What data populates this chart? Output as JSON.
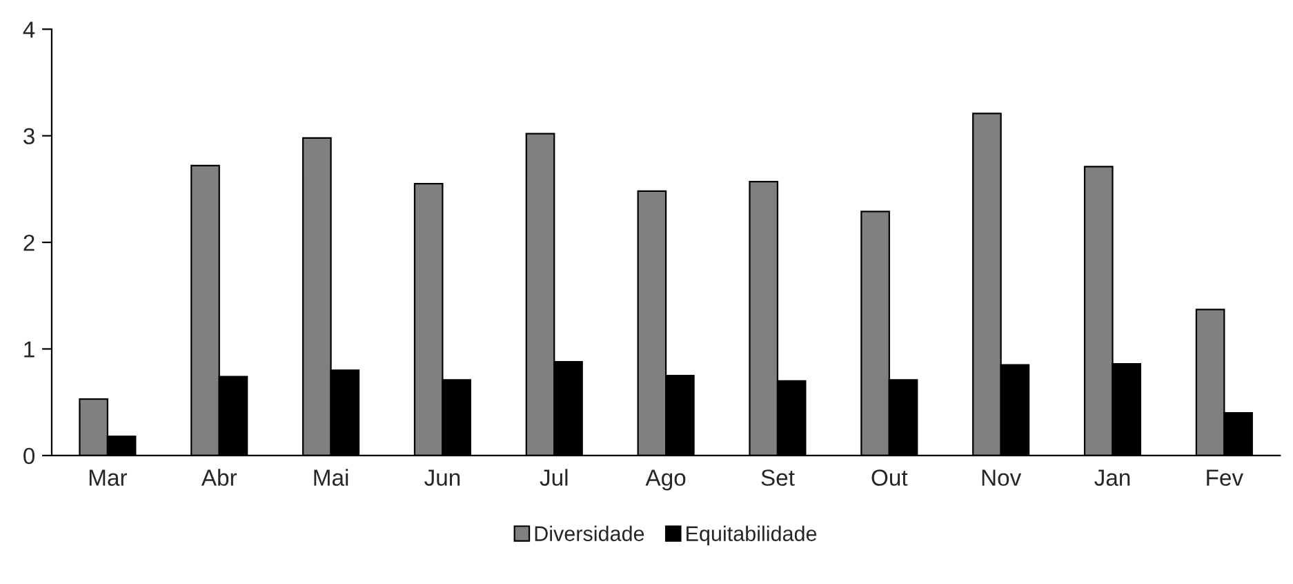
{
  "chart_data": {
    "type": "bar",
    "categories": [
      "Mar",
      "Abr",
      "Mai",
      "Jun",
      "Jul",
      "Ago",
      "Set",
      "Out",
      "Nov",
      "Jan",
      "Fev"
    ],
    "series": [
      {
        "name": "Diversidade",
        "color": "#808080",
        "values": [
          0.53,
          2.72,
          2.98,
          2.55,
          3.02,
          2.48,
          2.57,
          2.29,
          3.21,
          2.71,
          1.37
        ]
      },
      {
        "name": "Equitabilidade",
        "color": "#000000",
        "values": [
          0.18,
          0.74,
          0.8,
          0.71,
          0.88,
          0.75,
          0.7,
          0.71,
          0.85,
          0.86,
          0.4
        ]
      }
    ],
    "ylim": [
      0,
      4
    ],
    "yticks": [
      0,
      1,
      2,
      3,
      4
    ],
    "grid": false,
    "legend": "bottom"
  }
}
